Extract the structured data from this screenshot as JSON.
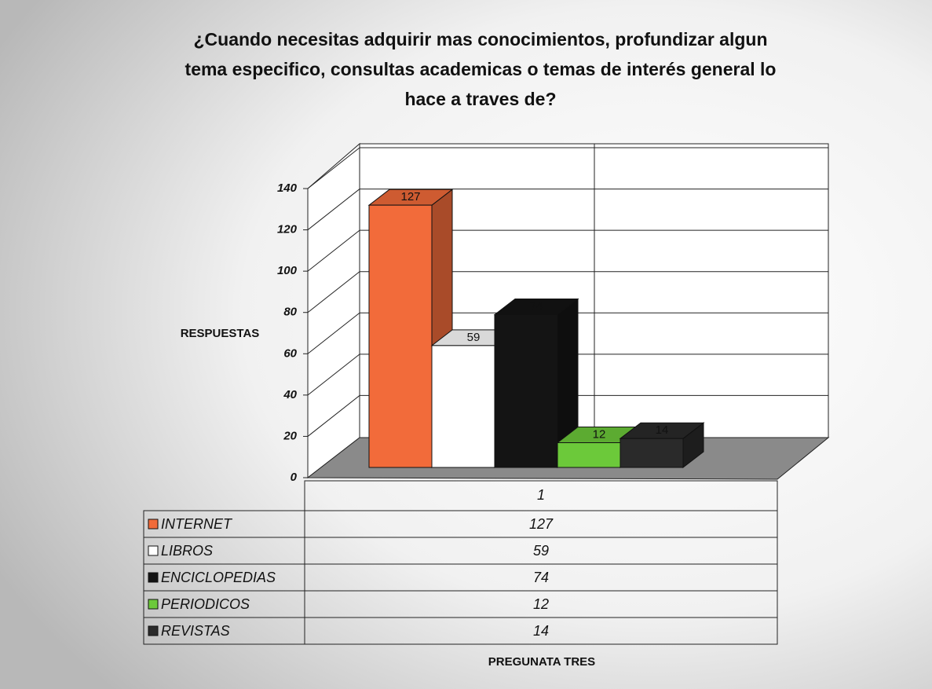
{
  "chart_data": {
    "type": "bar",
    "title": [
      "¿Cuando necesitas adquirir mas conocimientos, profundizar algun",
      "tema especifico, consultas academicas o temas de interés general lo",
      "hace a traves de?"
    ],
    "y_label": "RESPUESTAS",
    "x_label": "PREGUNATA TRES",
    "categories": [
      "1"
    ],
    "series": [
      {
        "name": "INTERNET",
        "color": "#f26b3a",
        "values": [
          127
        ]
      },
      {
        "name": "LIBROS",
        "color": "#ffffff",
        "values": [
          59
        ]
      },
      {
        "name": "ENCICLOPEDIAS",
        "color": "#141414",
        "values": [
          74
        ]
      },
      {
        "name": "PERIODICOS",
        "color": "#6cc93a",
        "values": [
          12
        ]
      },
      {
        "name": "REVISTAS",
        "color": "#2a2a2a",
        "values": [
          14
        ]
      }
    ],
    "ylim": [
      0,
      140
    ],
    "yticks": [
      0,
      20,
      40,
      60,
      80,
      100,
      120,
      140
    ],
    "grid": true
  }
}
